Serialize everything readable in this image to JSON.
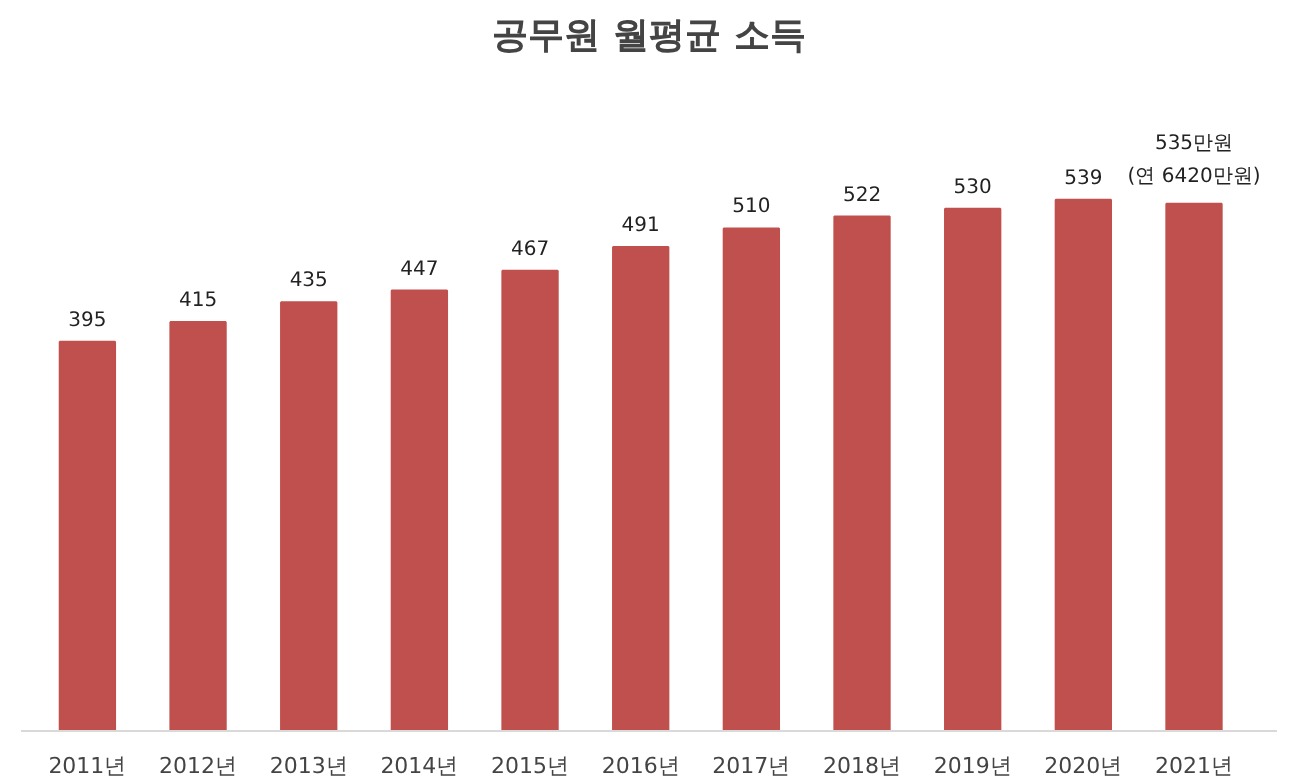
{
  "chart_data": {
    "type": "bar",
    "title": "공무원 월평균 소득",
    "categories": [
      "2011년",
      "2012년",
      "2013년",
      "2014년",
      "2015년",
      "2016년",
      "2017년",
      "2018년",
      "2019년",
      "2020년",
      "2021년"
    ],
    "values": [
      395,
      415,
      435,
      447,
      467,
      491,
      510,
      522,
      530,
      539,
      535
    ],
    "value_labels": [
      "395",
      "415",
      "435",
      "447",
      "467",
      "491",
      "510",
      "522",
      "530",
      "539",
      "535만원\n(연 6420만원)"
    ],
    "color": "#c0504d",
    "grid": false
  }
}
